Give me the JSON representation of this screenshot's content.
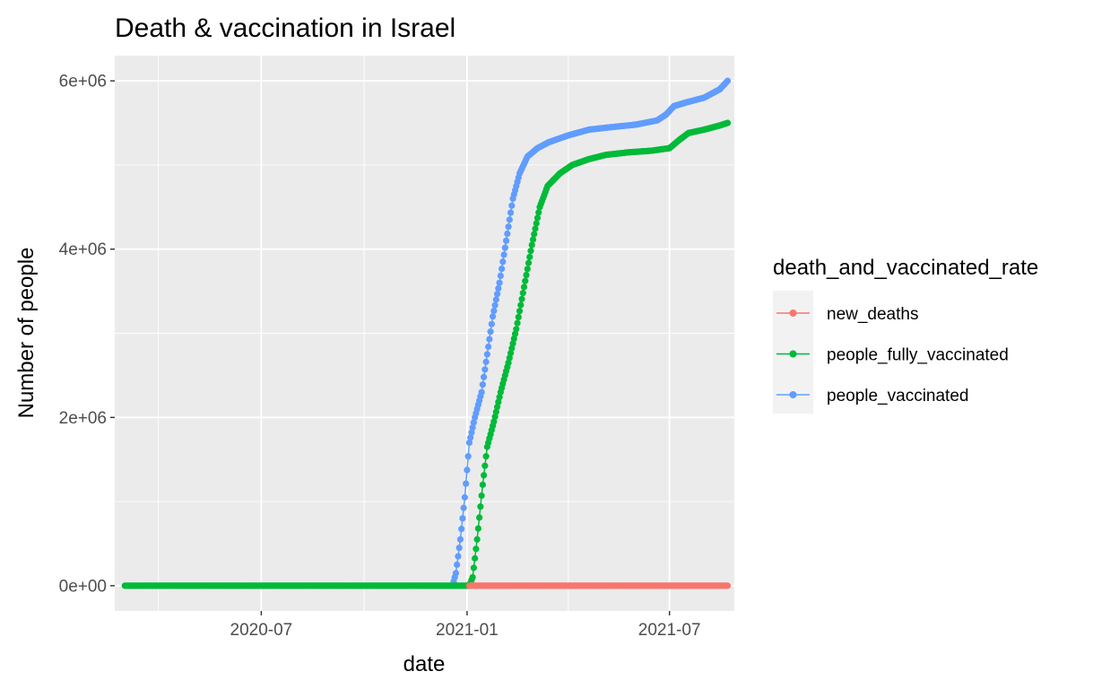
{
  "chart_data": {
    "type": "line",
    "title": "Death & vaccination in Israel",
    "xlabel": "date",
    "ylabel": "Number of people",
    "x_range": [
      "2020-02-21",
      "2021-08-28"
    ],
    "x_ticks": [
      "2020-07-01",
      "2021-01-01",
      "2021-07-01"
    ],
    "x_tick_labels": [
      "2020-07",
      "2021-01",
      "2021-07"
    ],
    "y_range": [
      -300000,
      6300000
    ],
    "y_ticks": [
      0,
      2000000,
      4000000,
      6000000
    ],
    "y_tick_labels": [
      "0e+00",
      "2e+06",
      "4e+06",
      "6e+06"
    ],
    "grid": true,
    "legend": {
      "title": "death_and_vaccinated_rate",
      "position": "right"
    },
    "series": [
      {
        "name": "new_deaths",
        "color": "#F8766D",
        "points": [
          [
            "2021-01-03",
            20
          ],
          [
            "2021-02-01",
            60
          ],
          [
            "2021-03-01",
            30
          ],
          [
            "2021-04-01",
            5
          ],
          [
            "2021-05-01",
            2
          ],
          [
            "2021-06-01",
            0
          ],
          [
            "2021-07-01",
            2
          ],
          [
            "2021-08-01",
            20
          ],
          [
            "2021-08-22",
            25
          ]
        ]
      },
      {
        "name": "people_fully_vaccinated",
        "color": "#00BA38",
        "points": [
          [
            "2020-03-01",
            0
          ],
          [
            "2020-06-01",
            0
          ],
          [
            "2020-09-01",
            0
          ],
          [
            "2020-12-01",
            0
          ],
          [
            "2021-01-03",
            0
          ],
          [
            "2021-01-06",
            100000
          ],
          [
            "2021-01-10",
            550000
          ],
          [
            "2021-01-15",
            1200000
          ],
          [
            "2021-01-19",
            1650000
          ],
          [
            "2021-01-25",
            1950000
          ],
          [
            "2021-01-31",
            2300000
          ],
          [
            "2021-02-07",
            2650000
          ],
          [
            "2021-02-14",
            3050000
          ],
          [
            "2021-02-21",
            3550000
          ],
          [
            "2021-02-28",
            4050000
          ],
          [
            "2021-03-07",
            4500000
          ],
          [
            "2021-03-14",
            4750000
          ],
          [
            "2021-03-25",
            4900000
          ],
          [
            "2021-04-05",
            5000000
          ],
          [
            "2021-04-20",
            5070000
          ],
          [
            "2021-05-05",
            5120000
          ],
          [
            "2021-05-25",
            5150000
          ],
          [
            "2021-06-15",
            5170000
          ],
          [
            "2021-07-01",
            5200000
          ],
          [
            "2021-07-10",
            5300000
          ],
          [
            "2021-07-18",
            5380000
          ],
          [
            "2021-08-01",
            5420000
          ],
          [
            "2021-08-15",
            5470000
          ],
          [
            "2021-08-22",
            5500000
          ]
        ]
      },
      {
        "name": "people_vaccinated",
        "color": "#619CFF",
        "points": [
          [
            "2020-12-19",
            0
          ],
          [
            "2020-12-22",
            150000
          ],
          [
            "2020-12-26",
            550000
          ],
          [
            "2020-12-30",
            1050000
          ],
          [
            "2021-01-03",
            1700000
          ],
          [
            "2021-01-08",
            2000000
          ],
          [
            "2021-01-14",
            2300000
          ],
          [
            "2021-01-19",
            2750000
          ],
          [
            "2021-01-24",
            3200000
          ],
          [
            "2021-01-30",
            3600000
          ],
          [
            "2021-02-05",
            4100000
          ],
          [
            "2021-02-11",
            4600000
          ],
          [
            "2021-02-17",
            4900000
          ],
          [
            "2021-02-24",
            5100000
          ],
          [
            "2021-03-05",
            5200000
          ],
          [
            "2021-03-15",
            5270000
          ],
          [
            "2021-04-01",
            5350000
          ],
          [
            "2021-04-20",
            5420000
          ],
          [
            "2021-05-10",
            5450000
          ],
          [
            "2021-06-01",
            5480000
          ],
          [
            "2021-06-20",
            5530000
          ],
          [
            "2021-06-28",
            5600000
          ],
          [
            "2021-07-05",
            5700000
          ],
          [
            "2021-07-15",
            5740000
          ],
          [
            "2021-08-01",
            5800000
          ],
          [
            "2021-08-15",
            5900000
          ],
          [
            "2021-08-22",
            6000000
          ]
        ]
      }
    ]
  }
}
